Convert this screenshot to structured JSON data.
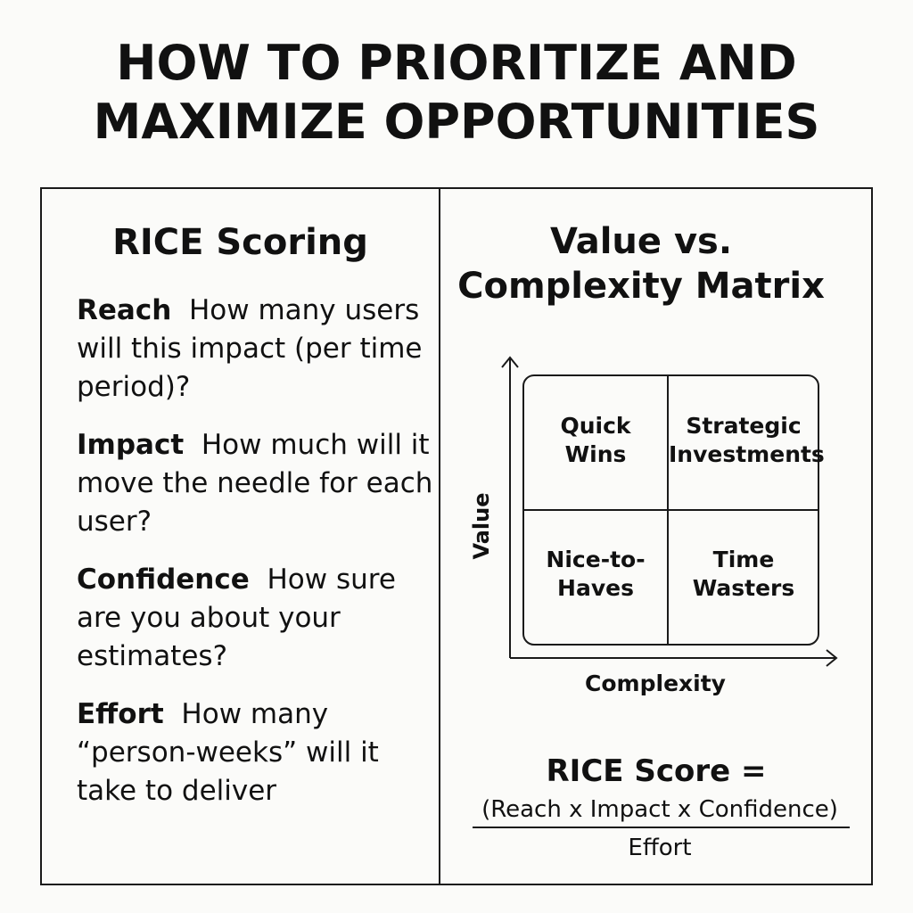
{
  "title": {
    "line1": "HOW TO PRIORITIZE AND",
    "line2": "MAXIMIZE OPPORTUNITIES"
  },
  "rice": {
    "heading": "RICE Scoring",
    "criteria": [
      {
        "term": "Reach",
        "description": "How many users will this impact (per time period)?"
      },
      {
        "term": "Impact",
        "description": "How much will it move the needle for each user?"
      },
      {
        "term": "Confidence",
        "description": "How sure are you about your estimates?"
      },
      {
        "term": "Effort",
        "description": "How many “person-weeks” will it take to deliver"
      }
    ]
  },
  "matrix": {
    "heading_line1": "Value vs.",
    "heading_line2": "Complexity Matrix",
    "y_axis_label": "Value",
    "x_axis_label": "Complexity",
    "quadrants": [
      {
        "line1": "Quick",
        "line2": "Wins"
      },
      {
        "line1": "Strategic",
        "line2": "Investments"
      },
      {
        "line1": "Nice-to-",
        "line2": "Haves"
      },
      {
        "line1": "Time",
        "line2": "Wasters"
      }
    ]
  },
  "formula": {
    "heading": "RICE Score =",
    "numerator": "(Reach x Impact x Confidence)",
    "denominator": "Effort"
  }
}
